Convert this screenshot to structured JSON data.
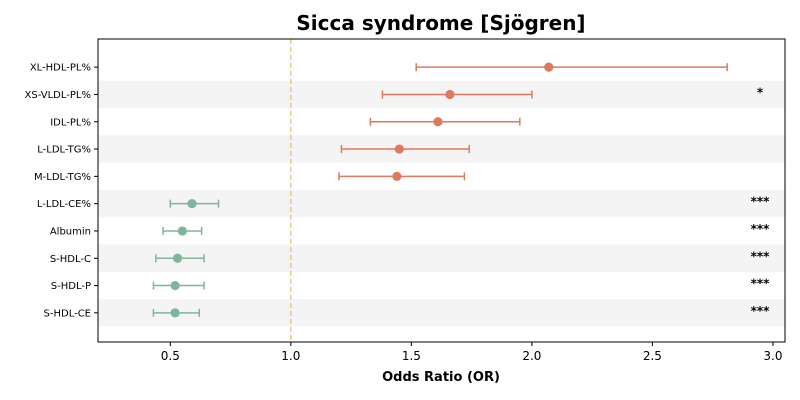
{
  "chart_data": {
    "type": "scatter",
    "title": "Sicca syndrome [Sjögren]",
    "xlabel": "Odds Ratio (OR)",
    "ylabel": "",
    "xlim": [
      0.2,
      3.05
    ],
    "xticks": [
      "0.5",
      "1.0",
      "1.5",
      "2.0",
      "2.5",
      "3.0"
    ],
    "reference_line": 1.0,
    "reference_line_color": "#f2c67a",
    "stripe_color": "#f4f4f4",
    "colors": {
      "increase": "#dc7a5e",
      "decrease": "#7fb59b"
    },
    "rows": [
      {
        "label": "XL-HDL-PL%",
        "or": 2.07,
        "ci_low": 1.52,
        "ci_high": 2.81,
        "direction": "increase",
        "significance": ""
      },
      {
        "label": "XS-VLDL-PL%",
        "or": 1.66,
        "ci_low": 1.38,
        "ci_high": 2.0,
        "direction": "increase",
        "significance": "*"
      },
      {
        "label": "IDL-PL%",
        "or": 1.61,
        "ci_low": 1.33,
        "ci_high": 1.95,
        "direction": "increase",
        "significance": ""
      },
      {
        "label": "L-LDL-TG%",
        "or": 1.45,
        "ci_low": 1.21,
        "ci_high": 1.74,
        "direction": "increase",
        "significance": ""
      },
      {
        "label": "M-LDL-TG%",
        "or": 1.44,
        "ci_low": 1.2,
        "ci_high": 1.72,
        "direction": "increase",
        "significance": ""
      },
      {
        "label": "L-LDL-CE%",
        "or": 0.59,
        "ci_low": 0.5,
        "ci_high": 0.7,
        "direction": "decrease",
        "significance": "***"
      },
      {
        "label": "Albumin",
        "or": 0.55,
        "ci_low": 0.47,
        "ci_high": 0.63,
        "direction": "decrease",
        "significance": "***"
      },
      {
        "label": "S-HDL-C",
        "or": 0.53,
        "ci_low": 0.44,
        "ci_high": 0.64,
        "direction": "decrease",
        "significance": "***"
      },
      {
        "label": "S-HDL-P",
        "or": 0.52,
        "ci_low": 0.43,
        "ci_high": 0.64,
        "direction": "decrease",
        "significance": "***"
      },
      {
        "label": "S-HDL-CE",
        "or": 0.52,
        "ci_low": 0.43,
        "ci_high": 0.62,
        "direction": "decrease",
        "significance": "***"
      }
    ]
  }
}
